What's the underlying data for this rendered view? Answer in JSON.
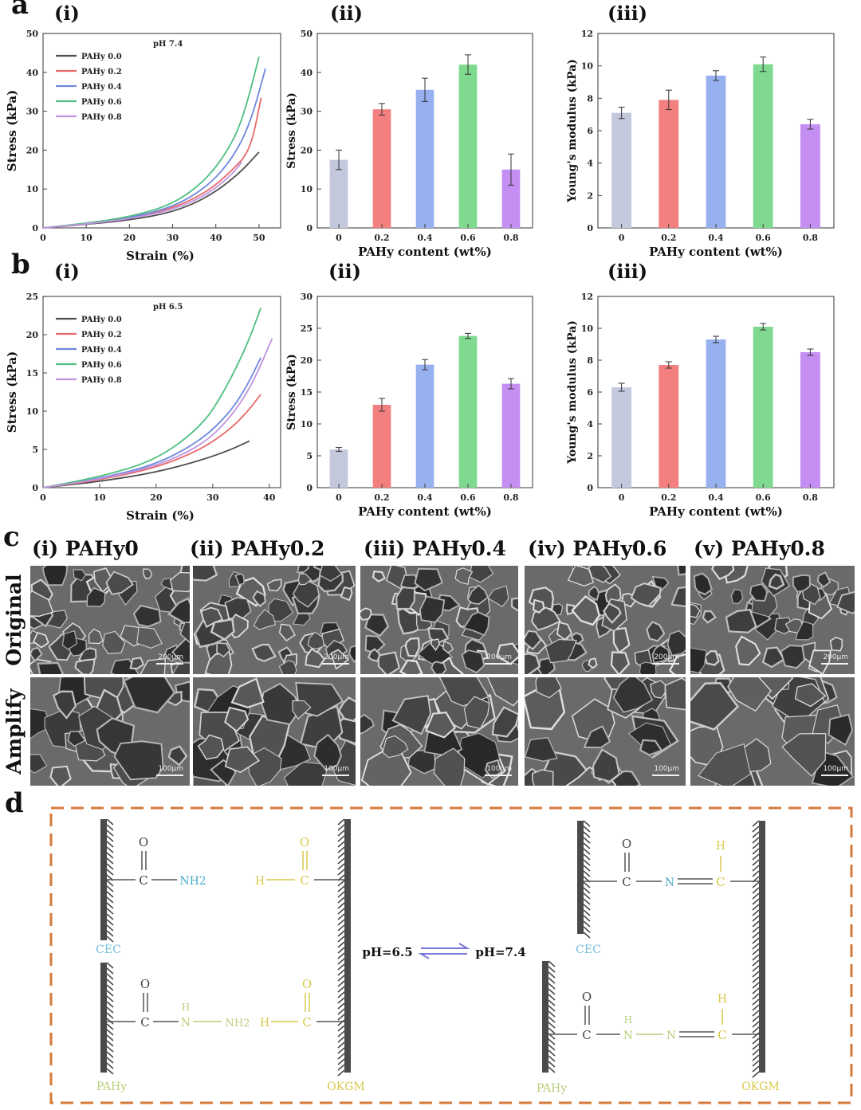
{
  "panels": {
    "a": "a",
    "b": "b",
    "c": "c",
    "d": "d"
  },
  "subpanels": [
    "(i)",
    "(ii)",
    "(iii)"
  ],
  "line_common": {
    "xlabel": "Strain (%)",
    "ylabel": "Stress (kPa)",
    "legend": [
      "PAHy 0.0",
      "PAHy 0.2",
      "PAHy 0.4",
      "PAHy 0.6",
      "PAHy 0.8"
    ]
  },
  "bar_common": {
    "xlabel": "PAHy content (wt%)",
    "categories": [
      "0",
      "0.2",
      "0.4",
      "0.6",
      "0.8"
    ],
    "stress_ylabel": "Stress (kPa)",
    "modulus_ylabel": "Young's modulus (kPa)"
  },
  "colors": {
    "c0": "#4f4f4f",
    "c1": "#e86a6a",
    "c2": "#6f88de",
    "c3": "#4fbf80",
    "c4": "#c094e0",
    "b0": "#c3c8dc",
    "b1": "#f3807f",
    "b2": "#97b1f0",
    "b3": "#7fda8f",
    "b4": "#c58ef2",
    "frame": "#d47a3a"
  },
  "chart_data": [
    {
      "id": "a-i",
      "type": "line",
      "annotation": "pH 7.4",
      "xlim": [
        0,
        55
      ],
      "ylim": [
        0,
        50
      ],
      "xticks": [
        0,
        10,
        20,
        30,
        40,
        50
      ],
      "yticks": [
        0,
        10,
        20,
        30,
        40,
        50
      ],
      "series": [
        {
          "name": "PAHy 0.0",
          "x": [
            0,
            10,
            20,
            30,
            38,
            45,
            50
          ],
          "y": [
            0,
            0.9,
            2.0,
            4.0,
            7.8,
            13.5,
            19.5
          ]
        },
        {
          "name": "PAHy 0.2",
          "x": [
            0,
            10,
            20,
            30,
            38,
            44,
            48,
            50.5
          ],
          "y": [
            0,
            1.0,
            2.4,
            5.0,
            9.2,
            15,
            20,
            33.5
          ]
        },
        {
          "name": "PAHy 0.4",
          "x": [
            0,
            10,
            20,
            30,
            38,
            44,
            48,
            51.5
          ],
          "y": [
            0,
            1.1,
            2.6,
            5.3,
            10.5,
            18,
            27,
            41
          ]
        },
        {
          "name": "PAHy 0.6",
          "x": [
            0,
            10,
            20,
            30,
            38,
            44,
            47,
            50
          ],
          "y": [
            0,
            1.2,
            2.8,
            6.0,
            12.5,
            22,
            31,
            44
          ]
        },
        {
          "name": "PAHy 0.8",
          "x": [
            0,
            10,
            20,
            30,
            38,
            44,
            46
          ],
          "y": [
            0,
            1.0,
            2.3,
            4.6,
            8.5,
            14,
            17
          ]
        }
      ]
    },
    {
      "id": "a-ii",
      "type": "bar",
      "ylim": [
        0,
        50
      ],
      "yticks": [
        0,
        10,
        20,
        30,
        40,
        50
      ],
      "categories": [
        "0",
        "0.2",
        "0.4",
        "0.6",
        "0.8"
      ],
      "values": [
        17.5,
        30.5,
        35.5,
        42,
        15
      ],
      "errors": [
        2.5,
        1.5,
        3,
        2.5,
        4
      ]
    },
    {
      "id": "a-iii",
      "type": "bar",
      "ylim": [
        0,
        12
      ],
      "yticks": [
        0,
        2,
        4,
        6,
        8,
        10,
        12
      ],
      "categories": [
        "0",
        "0.2",
        "0.4",
        "0.6",
        "0.8"
      ],
      "values": [
        7.1,
        7.9,
        9.4,
        10.1,
        6.4
      ],
      "errors": [
        0.35,
        0.6,
        0.3,
        0.45,
        0.3
      ]
    },
    {
      "id": "b-i",
      "type": "line",
      "annotation": "pH 6.5",
      "xlim": [
        0,
        42
      ],
      "ylim": [
        0,
        25
      ],
      "xticks": [
        0,
        10,
        20,
        30,
        40
      ],
      "yticks": [
        0,
        5,
        10,
        15,
        20,
        25
      ],
      "series": [
        {
          "name": "PAHy 0.0",
          "x": [
            0,
            10,
            20,
            28,
            33,
            36.5
          ],
          "y": [
            0,
            0.8,
            2.0,
            3.6,
            4.9,
            6.1
          ]
        },
        {
          "name": "PAHy 0.2",
          "x": [
            0,
            10,
            20,
            28,
            33,
            36,
            38.5
          ],
          "y": [
            0,
            1.0,
            2.6,
            5.0,
            7.6,
            9.8,
            12.2
          ]
        },
        {
          "name": "PAHy 0.4",
          "x": [
            0,
            10,
            20,
            28,
            33,
            36,
            38.5
          ],
          "y": [
            0,
            1.2,
            3.0,
            6.2,
            9.8,
            13.2,
            17
          ]
        },
        {
          "name": "PAHy 0.6",
          "x": [
            0,
            10,
            20,
            28,
            32,
            36,
            38.5
          ],
          "y": [
            0,
            1.4,
            3.6,
            8.0,
            12.5,
            18.5,
            23.5
          ]
        },
        {
          "name": "PAHy 0.8",
          "x": [
            0,
            10,
            20,
            28,
            33,
            37,
            40.5
          ],
          "y": [
            0,
            1.1,
            2.8,
            5.5,
            9.0,
            13.5,
            19.5
          ]
        }
      ]
    },
    {
      "id": "b-ii",
      "type": "bar",
      "ylim": [
        0,
        30
      ],
      "yticks": [
        0,
        5,
        10,
        15,
        20,
        25,
        30
      ],
      "categories": [
        "0",
        "0.2",
        "0.4",
        "0.6",
        "0.8"
      ],
      "values": [
        6,
        13,
        19.3,
        23.8,
        16.3
      ],
      "errors": [
        0.3,
        1.0,
        0.8,
        0.4,
        0.8
      ]
    },
    {
      "id": "b-iii",
      "type": "bar",
      "ylim": [
        0,
        12
      ],
      "yticks": [
        0,
        2,
        4,
        6,
        8,
        10,
        12
      ],
      "categories": [
        "0",
        "0.2",
        "0.4",
        "0.6",
        "0.8"
      ],
      "values": [
        6.3,
        7.7,
        9.3,
        10.1,
        8.5
      ],
      "errors": [
        0.25,
        0.2,
        0.2,
        0.2,
        0.2
      ]
    }
  ],
  "sem": {
    "titles": [
      "(i) PAHy0",
      "(ii) PAHy0.2",
      "(iii) PAHy0.4",
      "(iv) PAHy0.6",
      "(v) PAHy0.8"
    ],
    "rows": [
      "Original",
      "Amplify"
    ],
    "scale_original": "200μm",
    "scale_amplify": "100μm"
  },
  "scheme": {
    "O": "O",
    "C": "C",
    "H": "H",
    "N": "N",
    "NH2": "NH2",
    "NH": "N",
    "NH_H": "H",
    "CEC": "CEC",
    "PAHy": "PAHy",
    "OKGM": "OKGM",
    "ph_left": "pH=6.5",
    "ph_right": "pH=7.4",
    "cec_color": "#6fbfd8",
    "pahy_color": "#b8cf7a",
    "okgm_color": "#d8c84a",
    "amine_color": "#4aa9c9"
  }
}
